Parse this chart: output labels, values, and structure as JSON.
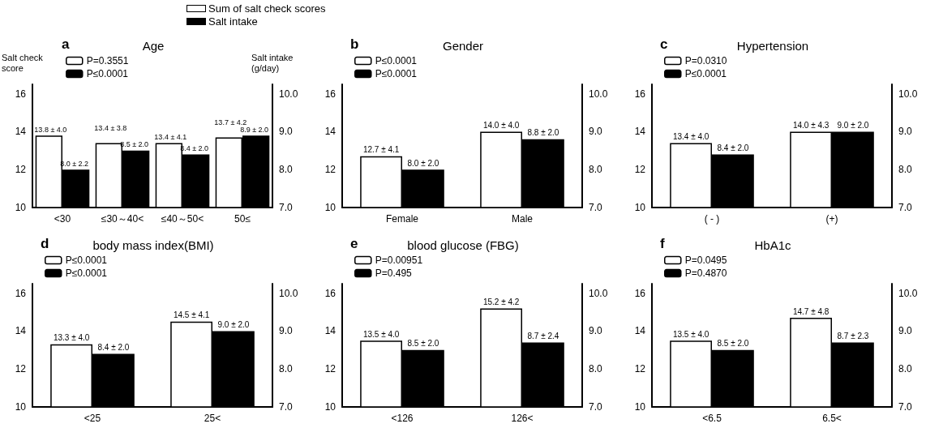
{
  "chart_data": [
    {
      "type": "bar",
      "title": "Age",
      "annotations": [
        "a",
        "Sum of salt check scores",
        "Salt intake"
      ],
      "ylabel": "Salt check score",
      "y2label": "Salt intake (g/day)",
      "categories": [
        "<30",
        "≤30～40<",
        "≤40～50<",
        "50≤"
      ],
      "series": [
        {
          "name": "P=0.3551",
          "color": "#ffffff",
          "values": [
            13.8,
            13.4,
            13.4,
            13.7
          ],
          "value_labels": [
            "13.8 ± 4.0",
            "13.4 ± 3.8",
            "13.4 ± 4.1",
            "13.7 ± 4.2"
          ]
        },
        {
          "name": "P≤0.0001",
          "color": "#000000",
          "axis": "y2",
          "values": [
            8.0,
            8.5,
            8.4,
            8.9
          ],
          "value_labels": [
            "8.0 ± 2.2",
            "8.5 ± 2.0",
            "8.4 ± 2.0",
            "8.9 ± 2.0"
          ]
        }
      ],
      "ylim": [
        10,
        16.5
      ],
      "yticks": [
        10,
        12,
        14,
        16
      ],
      "y2lim": [
        7,
        10.25
      ],
      "y2ticks": [
        {
          "value": 7,
          "label": "7.0"
        },
        {
          "value": 8,
          "label": "8.0"
        },
        {
          "value": 9,
          "label": "9.0"
        },
        {
          "value": 10,
          "label": "10.0"
        }
      ],
      "legend": "top left",
      "grid": false
    },
    {
      "type": "bar",
      "title": "Gender",
      "annotations": [
        "b"
      ],
      "categories": [
        "Female",
        "Male"
      ],
      "series": [
        {
          "name": "P≤0.0001",
          "color": "#ffffff",
          "values": [
            12.7,
            14.0
          ],
          "value_labels": [
            "12.7 ± 4.1",
            "14.0 ± 4.0"
          ]
        },
        {
          "name": "P≤0.0001",
          "color": "#000000",
          "axis": "y2",
          "values": [
            8.0,
            8.8
          ],
          "value_labels": [
            "8.0 ± 2.0",
            "8.8 ± 2.0"
          ]
        }
      ],
      "ylim": [
        10,
        16.5
      ],
      "yticks": [
        10,
        12,
        14,
        16
      ],
      "y2lim": [
        7,
        10.25
      ],
      "y2ticks": [
        {
          "value": 7,
          "label": "7.0"
        },
        {
          "value": 8,
          "label": "8.0"
        },
        {
          "value": 9,
          "label": "9.0"
        },
        {
          "value": 10,
          "label": "10.0"
        }
      ],
      "legend": "top left",
      "grid": false
    },
    {
      "type": "bar",
      "title": "Hypertension",
      "annotations": [
        "c"
      ],
      "categories": [
        "( - )",
        "(+)"
      ],
      "series": [
        {
          "name": "P=0.0310",
          "color": "#ffffff",
          "values": [
            13.4,
            14.0
          ],
          "value_labels": [
            "13.4 ± 4.0",
            "14.0 ± 4.3"
          ]
        },
        {
          "name": "P≤0.0001",
          "color": "#000000",
          "axis": "y2",
          "values": [
            8.4,
            9.0
          ],
          "value_labels": [
            "8.4 ± 2.0",
            "9.0 ± 2.0"
          ]
        }
      ],
      "ylim": [
        10,
        16.5
      ],
      "yticks": [
        10,
        12,
        14,
        16
      ],
      "y2lim": [
        7,
        10.25
      ],
      "y2ticks": [
        {
          "value": 7,
          "label": "7.0"
        },
        {
          "value": 8,
          "label": "8.0"
        },
        {
          "value": 9,
          "label": "9.0"
        },
        {
          "value": 10,
          "label": "10.0"
        }
      ],
      "legend": "top left",
      "grid": false
    },
    {
      "type": "bar",
      "title": "body mass index(BMI)",
      "annotations": [
        "d"
      ],
      "categories": [
        "<25",
        "25<"
      ],
      "series": [
        {
          "name": "P≤0.0001",
          "color": "#ffffff",
          "values": [
            13.3,
            14.5
          ],
          "value_labels": [
            "13.3 ± 4.0",
            "14.5 ± 4.1"
          ]
        },
        {
          "name": "P≤0.0001",
          "color": "#000000",
          "axis": "y2",
          "values": [
            8.4,
            9.0
          ],
          "value_labels": [
            "8.4 ± 2.0",
            "9.0 ± 2.0"
          ]
        }
      ],
      "ylim": [
        10,
        16.5
      ],
      "yticks": [
        10,
        12,
        14,
        16
      ],
      "y2lim": [
        7,
        10.25
      ],
      "y2ticks": [
        {
          "value": 7,
          "label": "7.0"
        },
        {
          "value": 8,
          "label": "8.0"
        },
        {
          "value": 9,
          "label": "9.0"
        },
        {
          "value": 10,
          "label": "10.0"
        }
      ],
      "legend": "top left",
      "grid": false
    },
    {
      "type": "bar",
      "title": "blood glucose (FBG)",
      "annotations": [
        "e"
      ],
      "categories": [
        "<126",
        "126<"
      ],
      "series": [
        {
          "name": "P=0.00951",
          "color": "#ffffff",
          "values": [
            13.5,
            15.2
          ],
          "value_labels": [
            "13.5 ± 4.0",
            "15.2 ± 4.2"
          ]
        },
        {
          "name": "P=0.495",
          "color": "#000000",
          "axis": "y2",
          "values": [
            8.5,
            8.7
          ],
          "value_labels": [
            "8.5 ± 2.0",
            "8.7 ± 2.4"
          ]
        }
      ],
      "ylim": [
        10,
        16.5
      ],
      "yticks": [
        10,
        12,
        14,
        16
      ],
      "y2lim": [
        7,
        10.25
      ],
      "y2ticks": [
        {
          "value": 7,
          "label": "7.0"
        },
        {
          "value": 8,
          "label": "8.0"
        },
        {
          "value": 9,
          "label": "9.0"
        },
        {
          "value": 10,
          "label": "10.0"
        }
      ],
      "legend": "top left",
      "grid": false
    },
    {
      "type": "bar",
      "title": "HbA1c",
      "annotations": [
        "f"
      ],
      "categories": [
        "<6.5",
        "6.5<"
      ],
      "series": [
        {
          "name": "P=0.0495",
          "color": "#ffffff",
          "values": [
            13.5,
            14.7
          ],
          "value_labels": [
            "13.5 ± 4.0",
            "14.7 ± 4.8"
          ]
        },
        {
          "name": "P=0.4870",
          "color": "#000000",
          "axis": "y2",
          "values": [
            8.5,
            8.7
          ],
          "value_labels": [
            "8.5 ± 2.0",
            "8.7 ± 2.3"
          ]
        }
      ],
      "ylim": [
        10,
        16.5
      ],
      "yticks": [
        10,
        12,
        14,
        16
      ],
      "y2lim": [
        7,
        10.25
      ],
      "y2ticks": [
        {
          "value": 7,
          "label": "7.0"
        },
        {
          "value": 8,
          "label": "8.0"
        },
        {
          "value": 9,
          "label": "9.0"
        },
        {
          "value": 10,
          "label": "10.0"
        }
      ],
      "legend": "top left",
      "grid": false
    }
  ]
}
